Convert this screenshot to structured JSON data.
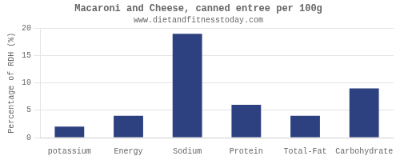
{
  "chart_data": {
    "type": "bar",
    "title": "Macaroni and Cheese, canned entree per 100g",
    "subtitle": "www.dietandfitnesstoday.com",
    "categories": [
      "potassium",
      "Energy",
      "Sodium",
      "Protein",
      "Total-Fat",
      "Carbohydrate"
    ],
    "values": [
      2,
      4,
      19,
      6,
      4,
      9
    ],
    "color": "#2d4080",
    "ylabel": "Percentage of RDH (%)",
    "ylim": [
      0,
      20
    ],
    "yticks": [
      0,
      5,
      10,
      15,
      20
    ],
    "grid": true
  }
}
